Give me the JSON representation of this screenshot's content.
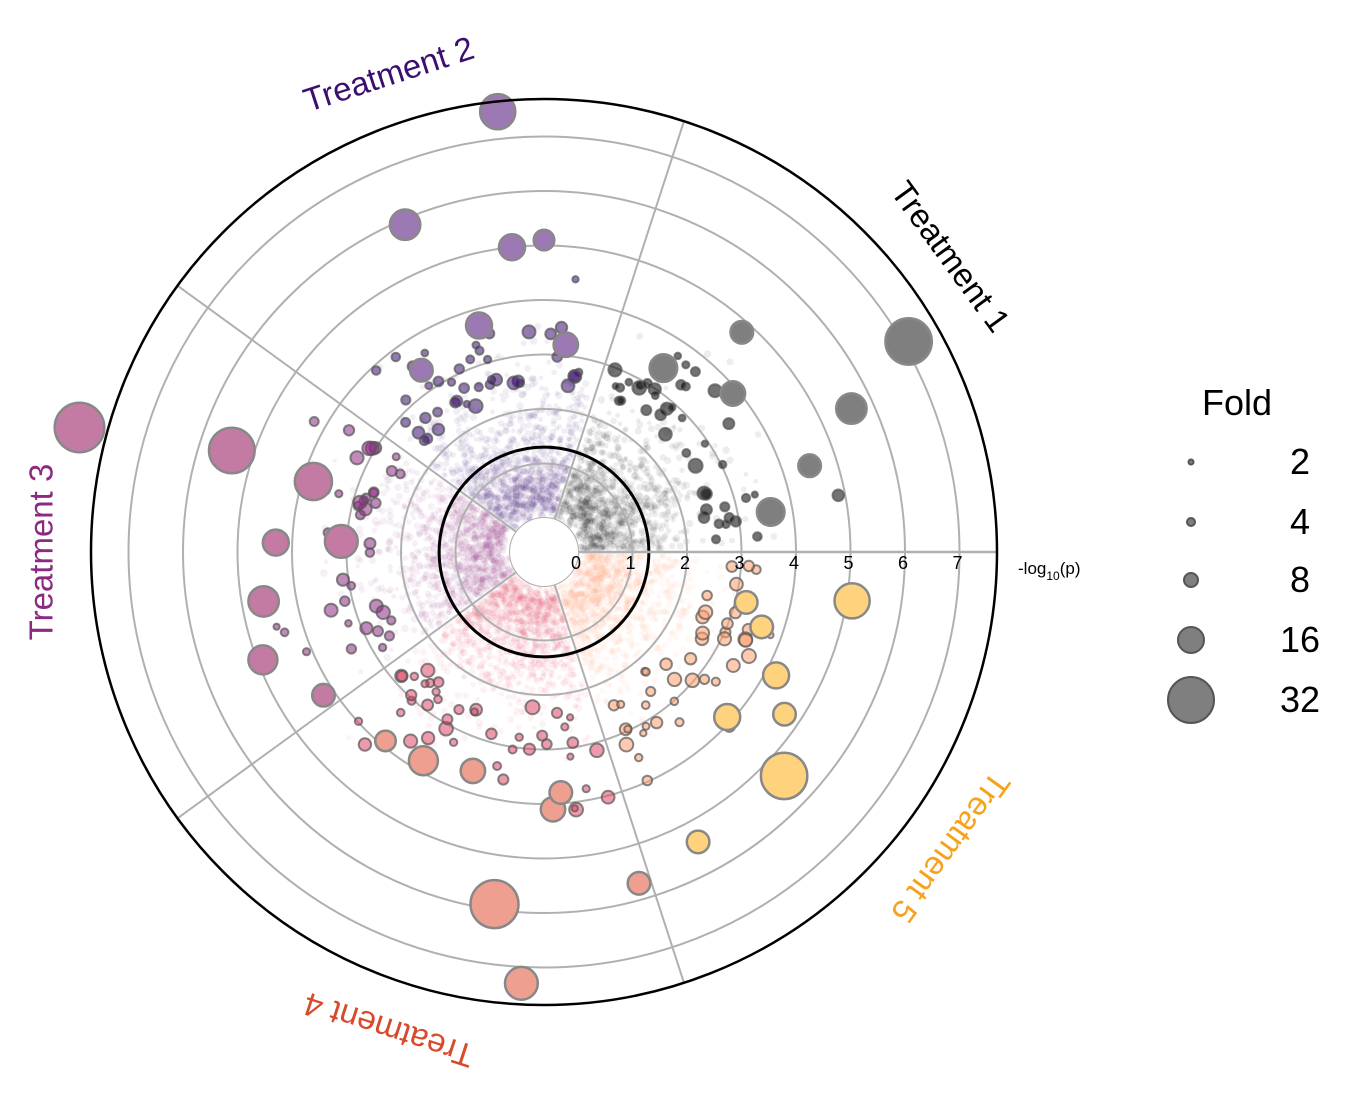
{
  "chart_data": {
    "type": "scatter",
    "subtype": "polar volcano plot",
    "radial_axis": {
      "label": "-log10(p)",
      "label_prefix": "-log",
      "label_sub": "10",
      "label_suffix": "(p)",
      "ticks": [
        "0",
        "1",
        "2",
        "3",
        "4",
        "5",
        "6",
        "7"
      ],
      "range": [
        0,
        8
      ],
      "threshold_circle": 1.3,
      "grid": true
    },
    "sectors": [
      {
        "name": "Treatment 1",
        "color": "#000000",
        "start_deg": 0,
        "end_deg": 72
      },
      {
        "name": "Treatment 2",
        "color": "#3b0f70",
        "start_deg": 72,
        "end_deg": 144
      },
      {
        "name": "Treatment 3",
        "color": "#8c2981",
        "start_deg": 144,
        "end_deg": 216
      },
      {
        "name": "Treatment 4",
        "color": "#de4968",
        "start_deg": 216,
        "end_deg": 288
      },
      {
        "name": "Treatment 5",
        "color": "#fe9f6d",
        "start_deg": 288,
        "end_deg": 360
      }
    ],
    "label_colors": [
      "#000000",
      "#3b0f70",
      "#8c2981",
      "#d9492b",
      "#f7a21b"
    ],
    "highlight_fill": [
      "#7f7f7f",
      "#9d79b3",
      "#c47ba3",
      "#ee9f8f",
      "#ffd27e"
    ],
    "highlight_points": [
      {
        "t": 1,
        "angle": 30,
        "r": 7.1,
        "fold": 26
      },
      {
        "t": 1,
        "angle": 57,
        "r": 3.4,
        "fold": 8
      },
      {
        "t": 1,
        "angle": 25,
        "r": 5.6,
        "fold": 10
      },
      {
        "t": 1,
        "angle": 18,
        "r": 4.5,
        "fold": 5
      },
      {
        "t": 1,
        "angle": 40,
        "r": 3.9,
        "fold": 6
      },
      {
        "t": 1,
        "angle": 10,
        "r": 3.6,
        "fold": 8
      },
      {
        "t": 1,
        "angle": 48,
        "r": 4.8,
        "fold": 5
      },
      {
        "t": 2,
        "angle": 96,
        "r": 7.5,
        "fold": 14
      },
      {
        "t": 2,
        "angle": 113,
        "r": 5.9,
        "fold": 10
      },
      {
        "t": 2,
        "angle": 96,
        "r": 5.0,
        "fold": 7
      },
      {
        "t": 2,
        "angle": 106,
        "r": 3.7,
        "fold": 7
      },
      {
        "t": 2,
        "angle": 84,
        "r": 3.2,
        "fold": 6
      },
      {
        "t": 2,
        "angle": 124,
        "r": 3.4,
        "fold": 5
      },
      {
        "t": 2,
        "angle": 90,
        "r": 5.1,
        "fold": 4
      },
      {
        "t": 3,
        "angle": 165,
        "r": 8.2,
        "fold": 30
      },
      {
        "t": 3,
        "angle": 162,
        "r": 5.4,
        "fold": 25
      },
      {
        "t": 3,
        "angle": 163,
        "r": 3.8,
        "fold": 16
      },
      {
        "t": 3,
        "angle": 177,
        "r": 3.1,
        "fold": 12
      },
      {
        "t": 3,
        "angle": 190,
        "r": 4.6,
        "fold": 10
      },
      {
        "t": 3,
        "angle": 201,
        "r": 4.9,
        "fold": 9
      },
      {
        "t": 3,
        "angle": 178,
        "r": 4.3,
        "fold": 7
      },
      {
        "t": 3,
        "angle": 213,
        "r": 4.2,
        "fold": 5
      },
      {
        "t": 4,
        "angle": 262,
        "r": 5.9,
        "fold": 28
      },
      {
        "t": 4,
        "angle": 267,
        "r": 7.3,
        "fold": 12
      },
      {
        "t": 4,
        "angle": 240,
        "r": 3.8,
        "fold": 9
      },
      {
        "t": 4,
        "angle": 272,
        "r": 4.1,
        "fold": 6
      },
      {
        "t": 4,
        "angle": 286,
        "r": 5.7,
        "fold": 5
      },
      {
        "t": 4,
        "angle": 252,
        "r": 3.6,
        "fold": 6
      },
      {
        "t": 4,
        "angle": 274,
        "r": 3.8,
        "fold": 5
      },
      {
        "t": 4,
        "angle": 230,
        "r": 3.9,
        "fold": 4
      },
      {
        "t": 5,
        "angle": 317,
        "r": 5.4,
        "fold": 26
      },
      {
        "t": 5,
        "angle": 351,
        "r": 5.1,
        "fold": 14
      },
      {
        "t": 5,
        "angle": 332,
        "r": 4.2,
        "fold": 7
      },
      {
        "t": 5,
        "angle": 318,
        "r": 3.9,
        "fold": 7
      },
      {
        "t": 5,
        "angle": 298,
        "r": 5.4,
        "fold": 5
      },
      {
        "t": 5,
        "angle": 326,
        "r": 4.7,
        "fold": 5
      },
      {
        "t": 5,
        "angle": 341,
        "r": 3.6,
        "fold": 5
      },
      {
        "t": 5,
        "angle": 346,
        "r": 3.2,
        "fold": 5
      }
    ]
  },
  "legend": {
    "title": "Fold",
    "entries": [
      {
        "label": "2",
        "fold": 2
      },
      {
        "label": "4",
        "fold": 4
      },
      {
        "label": "8",
        "fold": 8
      },
      {
        "label": "16",
        "fold": 16
      },
      {
        "label": "32",
        "fold": 32
      }
    ]
  }
}
